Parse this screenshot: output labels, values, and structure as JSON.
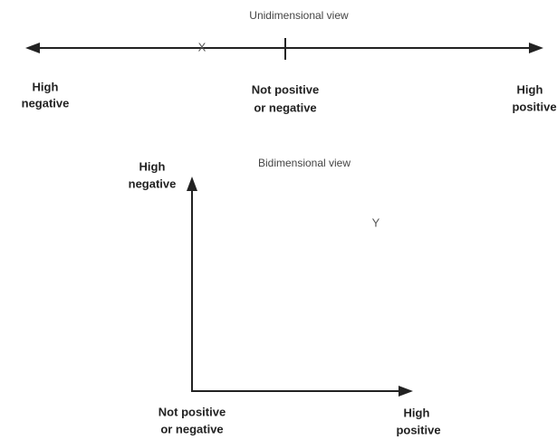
{
  "unidimensional": {
    "title": "Unidimensional view",
    "marker": "X",
    "left_label": [
      "High",
      "negative"
    ],
    "center_label": [
      "Not positive",
      "or negative"
    ],
    "right_label": [
      "High",
      "positive"
    ]
  },
  "bidimensional": {
    "title": "Bidimensional view",
    "marker": "Y",
    "y_axis_label": [
      "High",
      "negative"
    ],
    "origin_label": [
      "Not positive",
      "or negative"
    ],
    "x_axis_label": [
      "High",
      "positive"
    ]
  }
}
